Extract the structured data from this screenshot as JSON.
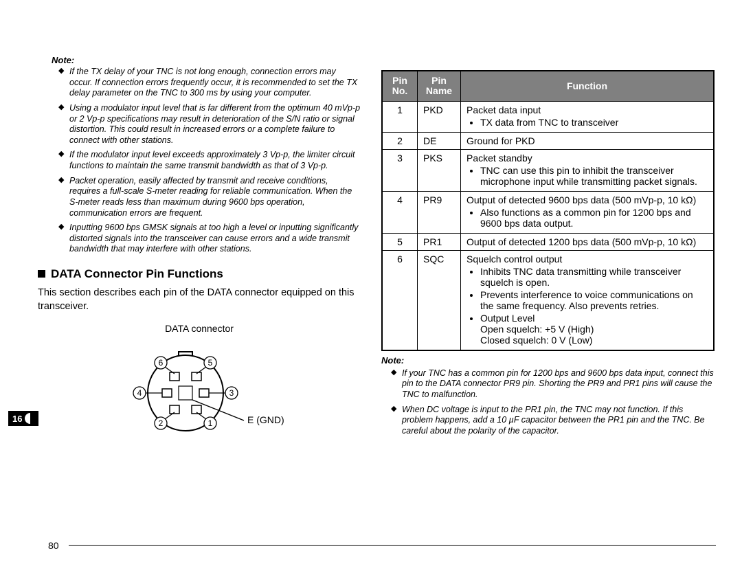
{
  "left": {
    "note_heading": "Note:",
    "note_items": [
      "If the TX delay of your TNC is not long enough, connection errors may occur. If connection errors frequently occur, it is recommended to set the TX delay parameter on the TNC to 300 ms by using your computer.",
      "Using a modulator input level that is far different from the optimum 40 mVp-p or 2 Vp-p specifications may result in deterioration of the S/N ratio or signal distortion. This could result in increased errors or a complete failure to connect with other stations.",
      "If the modulator input level exceeds approximately 3 Vp-p, the limiter circuit functions to maintain the same transmit bandwidth as that of 3 Vp-p.",
      "Packet operation, easily affected by transmit and receive conditions, requires a full-scale S-meter reading for reliable communication. When the S-meter reads less than maximum during 9600 bps operation, communication errors are frequent.",
      "Inputting 9600 bps GMSK signals at too high a level or inputting significantly distorted signals into the transceiver can cause errors and a wide transmit bandwidth that may interfere with other stations."
    ],
    "section_title": "DATA Connector Pin Functions",
    "section_body": "This section describes each pin of the DATA connector equipped on this transceiver.",
    "connector_label": "DATA connector",
    "gnd_label": "E (GND)",
    "pin_labels": [
      "1",
      "2",
      "3",
      "4",
      "5",
      "6"
    ]
  },
  "right": {
    "headers": {
      "no": "Pin No.",
      "name": "Pin Name",
      "fn": "Function"
    },
    "rows": [
      {
        "no": "1",
        "name": "PKD",
        "main": "Packet data input",
        "bullets": [
          "TX data from TNC to transceiver"
        ]
      },
      {
        "no": "2",
        "name": "DE",
        "main": "Ground for PKD",
        "bullets": []
      },
      {
        "no": "3",
        "name": "PKS",
        "main": "Packet standby",
        "bullets": [
          "TNC can use this pin to inhibit the transceiver microphone input while transmitting packet signals."
        ]
      },
      {
        "no": "4",
        "name": "PR9",
        "main": "Output of detected 9600 bps data (500 mVp-p, 10 kΩ)",
        "bullets": [
          "Also functions as a common pin for 1200 bps and 9600 bps data output."
        ]
      },
      {
        "no": "5",
        "name": "PR1",
        "main": "Output of detected 1200 bps data (500 mVp-p, 10 kΩ)",
        "bullets": []
      },
      {
        "no": "6",
        "name": "SQC",
        "main": "Squelch control output",
        "bullets": [
          "Inhibits TNC data transmitting while transceiver squelch is open.",
          "Prevents interference to voice communications on the same frequency. Also prevents retries.",
          "Output Level\nOpen squelch: +5 V (High)\nClosed squelch: 0 V (Low)"
        ]
      }
    ],
    "note_heading": "Note:",
    "note_items": [
      "If your TNC has a common pin for 1200 bps and 9600 bps data input, connect this pin to the DATA connector PR9 pin. Shorting the PR9 and PR1 pins will cause the TNC to malfunction.",
      "When DC voltage is input to the PR1 pin, the TNC may not function. If this problem happens, add a 10 µF capacitor between the PR1 pin and the TNC. Be careful about the polarity of the capacitor."
    ]
  },
  "side_tab": "16",
  "page_number": "80",
  "colors": {
    "header_bg": "#808080",
    "header_fg": "#ffffff",
    "border": "#000000"
  }
}
